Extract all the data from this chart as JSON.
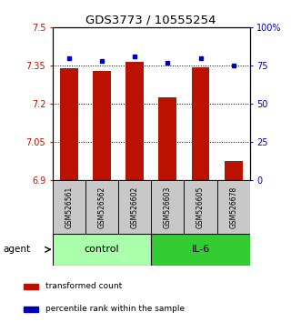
{
  "title": "GDS3773 / 10555254",
  "samples": [
    "GSM526561",
    "GSM526562",
    "GSM526602",
    "GSM526603",
    "GSM526605",
    "GSM526678"
  ],
  "bar_values": [
    7.34,
    7.33,
    7.365,
    7.225,
    7.345,
    6.975
  ],
  "percentile_values": [
    80,
    78,
    81,
    77,
    80,
    75
  ],
  "ylim_left": [
    6.9,
    7.5
  ],
  "ylim_right": [
    0,
    100
  ],
  "yticks_left": [
    6.9,
    7.05,
    7.2,
    7.35,
    7.5
  ],
  "ytick_labels_left": [
    "6.9",
    "7.05",
    "7.2",
    "7.35",
    "7.5"
  ],
  "yticks_right": [
    0,
    25,
    50,
    75,
    100
  ],
  "ytick_labels_right": [
    "0",
    "25",
    "50",
    "75",
    "100%"
  ],
  "hlines": [
    7.05,
    7.2,
    7.35
  ],
  "bar_color": "#BB1100",
  "percentile_color": "#0000BB",
  "groups": [
    {
      "label": "control",
      "color": "#AAFFAA"
    },
    {
      "label": "IL-6",
      "color": "#33CC33"
    }
  ],
  "group_ranges": [
    [
      0,
      2
    ],
    [
      3,
      5
    ]
  ],
  "agent_label": "agent",
  "legend_items": [
    {
      "color": "#BB1100",
      "label": "transformed count"
    },
    {
      "color": "#0000BB",
      "label": "percentile rank within the sample"
    }
  ],
  "bar_width": 0.55,
  "sample_box_color": "#C8C8C8",
  "title_fontsize": 9.5,
  "tick_fontsize": 7,
  "sample_fontsize": 5.5,
  "group_fontsize": 8,
  "legend_fontsize": 6.5,
  "agent_fontsize": 7.5
}
